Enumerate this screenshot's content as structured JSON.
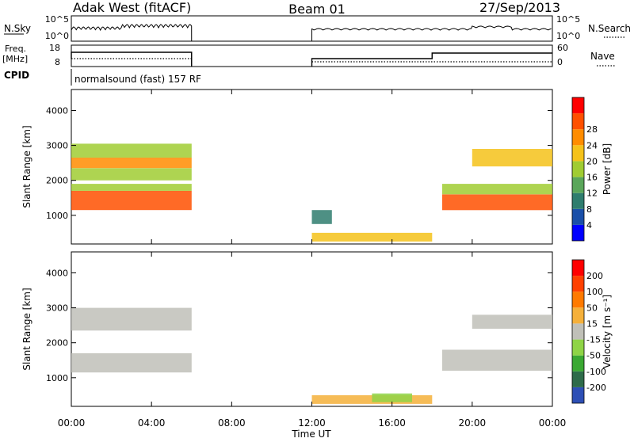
{
  "header": {
    "station": "Adak West (fitACF)",
    "beam": "Beam 01",
    "date": "27/Sep/2013"
  },
  "labels": {
    "nsky": "N.Sky",
    "nsearch": "N.Search",
    "freq_line1": "Freq.",
    "freq_line2": "[MHz]",
    "nave": "Nave",
    "cpid": "CPID",
    "program": "normalsound (fast) 157 RF"
  },
  "noise_panel": {
    "left_ticks": [
      "10^5",
      "10^0"
    ],
    "right_ticks": [
      "10^5",
      "10^0"
    ]
  },
  "freq_panel": {
    "left_ticks": [
      "18",
      "8"
    ],
    "right_ticks": [
      "60",
      "0"
    ]
  },
  "colors": {
    "power": [
      "#0000ff",
      "#1a4fa8",
      "#2f7d6e",
      "#5aa65a",
      "#a0cc32",
      "#f5c21a",
      "#ff8c00",
      "#ff5000",
      "#ff0000"
    ],
    "velocity": [
      "#2d4fb5",
      "#2e6b4a",
      "#3aa832",
      "#8fd446",
      "#c0c0b8",
      "#f5b03a",
      "#ff7a00",
      "#ff4000",
      "#ff0000"
    ]
  },
  "chart_data": [
    {
      "type": "heatmap",
      "xlabel": "Time UT",
      "ylabel": "Slant Range [km]",
      "x_ticks": [
        "00:00",
        "04:00",
        "08:00",
        "12:00",
        "16:00",
        "20:00",
        "00:00"
      ],
      "y_ticks": [
        "1000",
        "2000",
        "3000",
        "4000"
      ],
      "colorbar_label": "Power [dB]",
      "colorbar_ticks": [
        "4",
        "8",
        "12",
        "16",
        "20",
        "24",
        "28"
      ],
      "xlim": [
        0,
        24
      ],
      "ylim": [
        180,
        4600
      ],
      "bands": [
        {
          "t": [
            0,
            6
          ],
          "r": [
            1150,
            1700
          ],
          "value": 27
        },
        {
          "t": [
            0,
            6
          ],
          "r": [
            1700,
            1900
          ],
          "value": 15
        },
        {
          "t": [
            0,
            6
          ],
          "r": [
            2000,
            2350
          ],
          "value": 17
        },
        {
          "t": [
            0,
            6
          ],
          "r": [
            2350,
            2650
          ],
          "value": 24
        },
        {
          "t": [
            0,
            6
          ],
          "r": [
            2650,
            3050
          ],
          "value": 14
        },
        {
          "t": [
            12,
            18
          ],
          "r": [
            250,
            500
          ],
          "value": 20
        },
        {
          "t": [
            12,
            13
          ],
          "r": [
            750,
            1150
          ],
          "value": 8
        },
        {
          "t": [
            18.5,
            24
          ],
          "r": [
            1150,
            1600
          ],
          "value": 27
        },
        {
          "t": [
            18.5,
            24
          ],
          "r": [
            1600,
            1900
          ],
          "value": 14
        },
        {
          "t": [
            20,
            24
          ],
          "r": [
            2400,
            2900
          ],
          "value": 20
        }
      ]
    },
    {
      "type": "heatmap",
      "xlabel": "Time UT",
      "ylabel": "Slant Range [km]",
      "x_ticks": [
        "00:00",
        "04:00",
        "08:00",
        "12:00",
        "16:00",
        "20:00",
        "00:00"
      ],
      "y_ticks": [
        "1000",
        "2000",
        "3000",
        "4000"
      ],
      "colorbar_label": "Velocity [m s⁻¹]",
      "colorbar_ticks": [
        "200",
        "100",
        "50",
        "15",
        "-15",
        "-50",
        "-100",
        "-200"
      ],
      "xlim": [
        0,
        24
      ],
      "ylim": [
        180,
        4600
      ],
      "bands": [
        {
          "t": [
            0,
            6
          ],
          "r": [
            1150,
            1700
          ],
          "value": 0
        },
        {
          "t": [
            0,
            6
          ],
          "r": [
            2350,
            3000
          ],
          "value": 0
        },
        {
          "t": [
            12,
            18
          ],
          "r": [
            250,
            500
          ],
          "value": 30
        },
        {
          "t": [
            15,
            17
          ],
          "r": [
            300,
            550
          ],
          "value": -60
        },
        {
          "t": [
            18.5,
            24
          ],
          "r": [
            1200,
            1800
          ],
          "value": 0
        },
        {
          "t": [
            20,
            24
          ],
          "r": [
            2400,
            2800
          ],
          "value": 0
        }
      ]
    }
  ]
}
